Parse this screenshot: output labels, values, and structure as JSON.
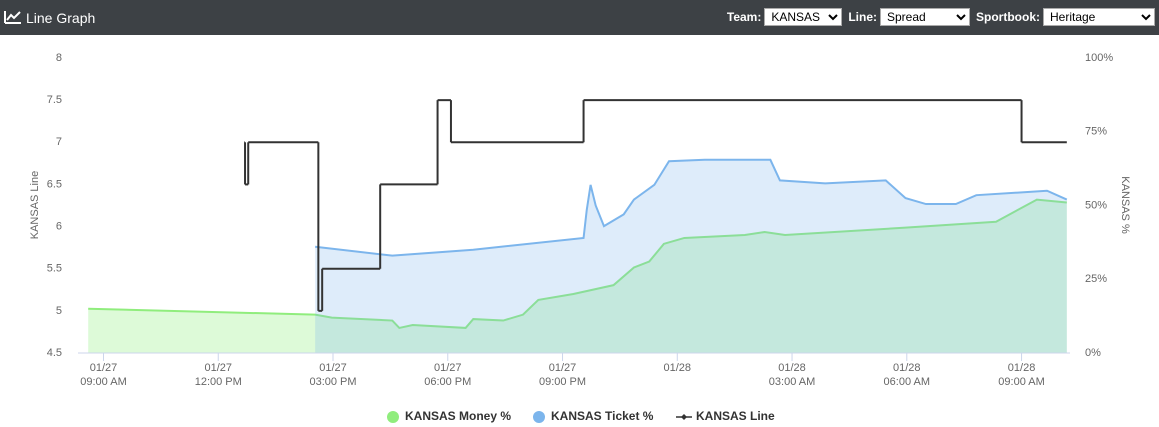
{
  "header": {
    "title": "Line Graph",
    "filters": [
      {
        "label": "Team:",
        "value": "KANSAS"
      },
      {
        "label": "Line:",
        "value": "Spread"
      },
      {
        "label": "Sportbook:",
        "value": "Heritage"
      }
    ]
  },
  "chart_data": {
    "type": "line",
    "ylabel": "KANSAS Line",
    "y2label": "KANSAS %",
    "xlim": [
      "01/27 08:20",
      "01/28 10:16"
    ],
    "xticks": [
      {
        "value": "01/27 09:00",
        "label": [
          "01/27",
          "09:00 AM"
        ]
      },
      {
        "value": "01/27 12:00",
        "label": [
          "01/27",
          "12:00 PM"
        ]
      },
      {
        "value": "01/27 15:00",
        "label": [
          "01/27",
          "03:00 PM"
        ]
      },
      {
        "value": "01/27 18:00",
        "label": [
          "01/27",
          "06:00 PM"
        ]
      },
      {
        "value": "01/27 21:00",
        "label": [
          "01/27",
          "09:00 PM"
        ]
      },
      {
        "value": "01/28 00:00",
        "label": [
          "01/28"
        ]
      },
      {
        "value": "01/28 03:00",
        "label": [
          "01/28",
          "03:00 AM"
        ]
      },
      {
        "value": "01/28 06:00",
        "label": [
          "01/28",
          "06:00 AM"
        ]
      },
      {
        "value": "01/28 09:00",
        "label": [
          "01/28",
          "09:00 AM"
        ]
      }
    ],
    "ylim": [
      4.5,
      8
    ],
    "yticks": [
      4.5,
      5,
      5.5,
      6,
      6.5,
      7,
      7.5,
      8
    ],
    "y2lim": [
      0,
      100
    ],
    "y2ticks": [
      {
        "value": 0,
        "label": "0%"
      },
      {
        "value": 25,
        "label": "25%"
      },
      {
        "value": 50,
        "label": "50%"
      },
      {
        "value": 75,
        "label": "75%"
      },
      {
        "value": 100,
        "label": "100%"
      }
    ],
    "series": [
      {
        "name": "KANSAS Money %",
        "color": "#90ed7d",
        "axis": "y2",
        "style": "area",
        "x": [
          "01/27 08:36",
          "01/27 14:32",
          "01/27 14:58",
          "01/27 16:33",
          "01/27 16:44",
          "01/27 17:05",
          "01/27 18:28",
          "01/27 18:40",
          "01/27 19:27",
          "01/27 19:58",
          "01/27 20:22",
          "01/27 21:17",
          "01/27 22:20",
          "01/27 22:52",
          "01/27 23:16",
          "01/27 23:39",
          "01/28 00:11",
          "01/28 01:46",
          "01/28 02:17",
          "01/28 02:49",
          "01/28 05:58",
          "01/28 08:20",
          "01/28 09:24",
          "01/28 10:11"
        ],
        "values": [
          15,
          13,
          12,
          11,
          8.5,
          9.5,
          8.5,
          11.5,
          11,
          13,
          18,
          20,
          23,
          29,
          31,
          37,
          39,
          40,
          41,
          40,
          42.5,
          44.5,
          52,
          51
        ]
      },
      {
        "name": "KANSAS Ticket %",
        "color": "#7cb5ec",
        "axis": "y2",
        "style": "area",
        "x": [
          "01/27 14:32",
          "01/27 16:33",
          "01/27 18:40",
          "01/27 21:33",
          "01/27 21:38",
          "01/27 21:44",
          "01/27 21:52",
          "01/27 22:05",
          "01/27 22:36",
          "01/27 22:52",
          "01/27 23:24",
          "01/27 23:47",
          "01/28 00:43",
          "01/28 02:26",
          "01/28 02:41",
          "01/28 03:52",
          "01/28 05:27",
          "01/28 05:58",
          "01/28 06:30",
          "01/28 07:17",
          "01/28 07:49",
          "01/28 09:40",
          "01/28 10:11"
        ],
        "values": [
          36,
          33,
          35,
          39,
          48.5,
          57,
          50,
          43,
          47,
          52,
          57,
          65,
          65.5,
          65.5,
          58.5,
          57.5,
          58.5,
          52.5,
          50.5,
          50.5,
          53.5,
          55,
          52
        ]
      },
      {
        "name": "KANSAS Line",
        "color": "#333333",
        "axis": "y",
        "style": "step",
        "x": [
          "01/27 12:41",
          "01/27 12:42",
          "01/27 12:47",
          "01/27 14:37",
          "01/27 14:43",
          "01/27 16:14",
          "01/27 17:44",
          "01/27 18:05",
          "01/27 21:33",
          "01/28 09:00",
          "01/28 10:11"
        ],
        "values": [
          7,
          6.5,
          7,
          5,
          5.5,
          6.5,
          7.5,
          7,
          7.5,
          7,
          7
        ]
      }
    ]
  }
}
